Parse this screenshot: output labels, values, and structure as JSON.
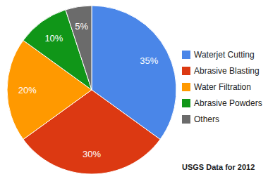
{
  "chart_data": {
    "type": "pie",
    "title": "USGS Data for 2012",
    "categories": [
      "Waterjet Cutting",
      "Abrasive Blasting",
      "Water Filtration",
      "Abrasive Powders",
      "Others"
    ],
    "values": [
      35,
      30,
      20,
      10,
      5
    ],
    "value_labels": [
      "35%",
      "30%",
      "20%",
      "10%",
      "5%"
    ],
    "colors": [
      "#4a86e8",
      "#dc3912",
      "#ff9900",
      "#109618",
      "#6b6b6b"
    ],
    "data_labels": true,
    "legend": "right"
  }
}
